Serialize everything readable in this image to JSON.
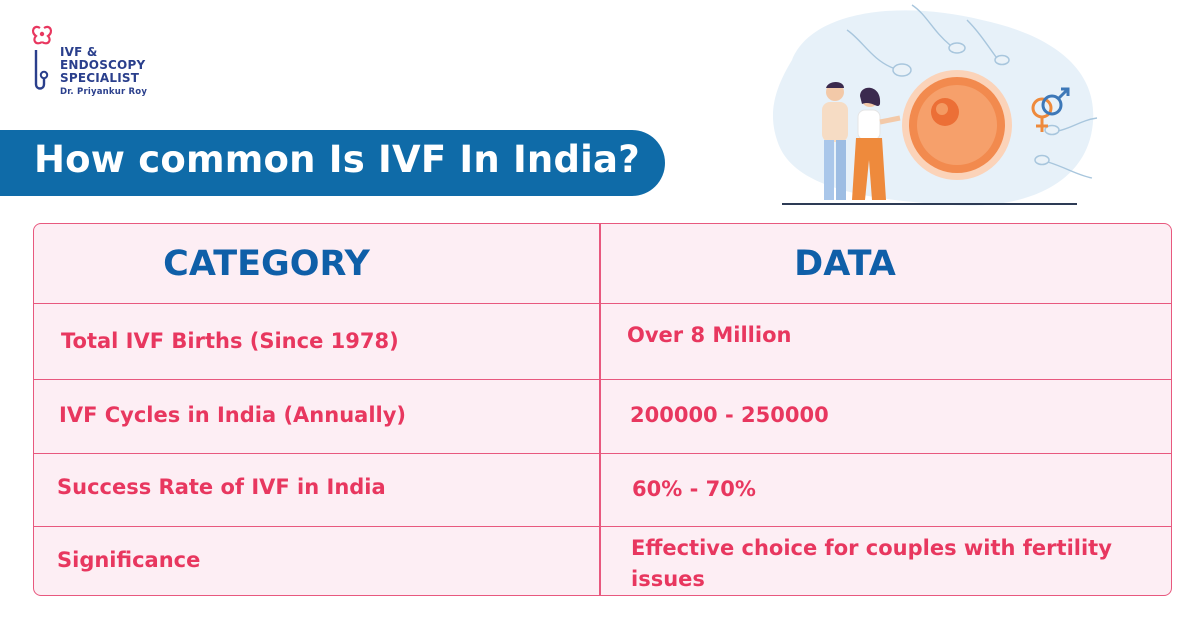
{
  "logo": {
    "line1": "IVF &",
    "line2": "ENDOSCOPY",
    "line3": "SPECIALIST",
    "line4": "Dr. Priyankur Roy",
    "icon": "uterus-stethoscope-logo-icon"
  },
  "title": "How common Is IVF In India?",
  "illustration": {
    "icon": "couple-egg-sperm-illustration"
  },
  "colors": {
    "banner": "#0f6ba8",
    "header_text": "#0f5fa8",
    "cell_text": "#e8375f",
    "border": "#e8587e",
    "table_bg": "#fdeef4"
  },
  "table": {
    "headers": [
      "CATEGORY",
      "DATA"
    ],
    "rows": [
      {
        "category": "Total IVF Births (Since 1978)",
        "data": "Over 8 Million"
      },
      {
        "category": "IVF Cycles in India (Annually)",
        "data": "200000 - 250000"
      },
      {
        "category": "Success Rate of IVF in India",
        "data": "60% - 70%"
      },
      {
        "category": "Significance",
        "data": "Effective choice for couples with fertility issues"
      }
    ]
  }
}
